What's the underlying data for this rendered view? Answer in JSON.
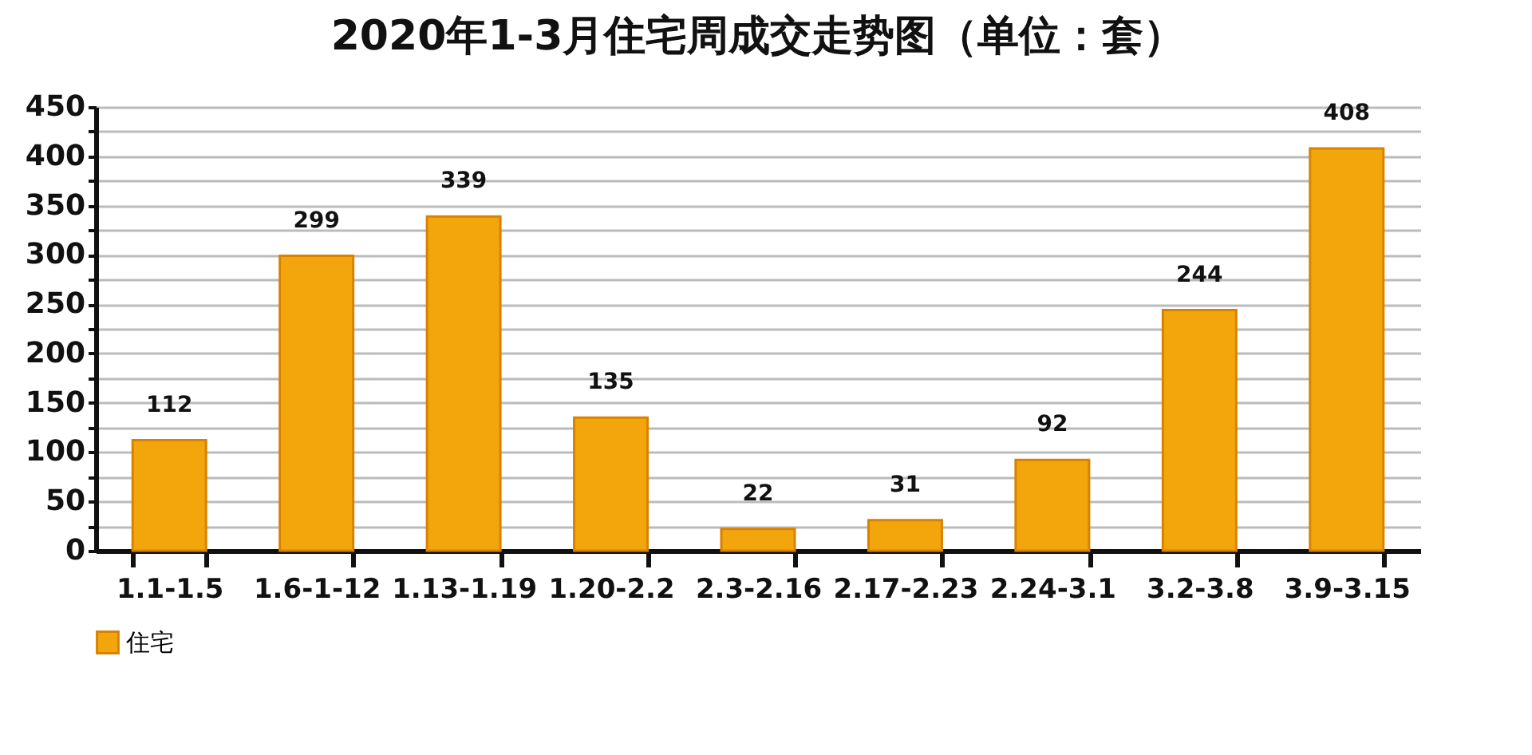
{
  "chart_data": {
    "type": "bar",
    "title": "2020年1-3月住宅周成交走势图（单位：套）",
    "categories": [
      "1.1-1.5",
      "1.6-1-12",
      "1.13-1.19",
      "1.20-2.2",
      "2.3-2.16",
      "2.17-2.23",
      "2.24-3.1",
      "3.2-3.8",
      "3.9-3.15"
    ],
    "series": [
      {
        "name": "住宅",
        "color": "#f2a60c",
        "values": [
          112,
          299,
          339,
          135,
          22,
          31,
          92,
          244,
          408
        ]
      }
    ],
    "ylim": [
      0,
      450
    ],
    "yticks": [
      0,
      {
        "value": 25,
        "label": null
      },
      50,
      {
        "value": 75,
        "label": null
      },
      100,
      {
        "value": 125,
        "label": null
      },
      150,
      {
        "value": 175,
        "label": null
      },
      200,
      {
        "value": 225,
        "label": null
      },
      250,
      {
        "value": 275,
        "label": null
      },
      300,
      {
        "value": 325,
        "label": null
      },
      350,
      {
        "value": 375,
        "label": null
      },
      400,
      {
        "value": 425,
        "label": null
      },
      450
    ],
    "grid": "y",
    "legend": "bottom",
    "data_labels": true
  }
}
